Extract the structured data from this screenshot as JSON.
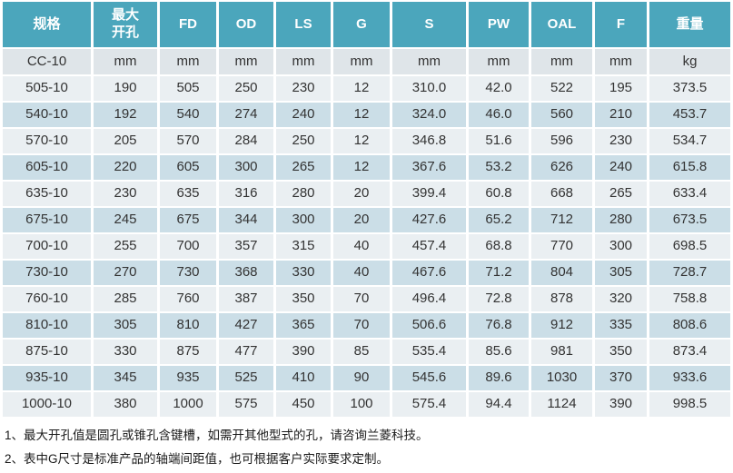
{
  "table": {
    "columns": [
      "规格",
      "最大\n开孔",
      "FD",
      "OD",
      "LS",
      "G",
      "S",
      "PW",
      "OAL",
      "F",
      "重量"
    ],
    "units_row": [
      "CC-10",
      "mm",
      "mm",
      "mm",
      "mm",
      "mm",
      "mm",
      "mm",
      "mm",
      "mm",
      "kg"
    ],
    "rows": [
      [
        "505-10",
        "190",
        "505",
        "250",
        "230",
        "12",
        "310.0",
        "42.0",
        "522",
        "195",
        "373.5"
      ],
      [
        "540-10",
        "192",
        "540",
        "274",
        "240",
        "12",
        "324.0",
        "46.0",
        "560",
        "210",
        "453.7"
      ],
      [
        "570-10",
        "205",
        "570",
        "284",
        "250",
        "12",
        "346.8",
        "51.6",
        "596",
        "230",
        "534.7"
      ],
      [
        "605-10",
        "220",
        "605",
        "300",
        "265",
        "12",
        "367.6",
        "53.2",
        "626",
        "240",
        "615.8"
      ],
      [
        "635-10",
        "230",
        "635",
        "316",
        "280",
        "20",
        "399.4",
        "60.8",
        "668",
        "265",
        "633.4"
      ],
      [
        "675-10",
        "245",
        "675",
        "344",
        "300",
        "20",
        "427.6",
        "65.2",
        "712",
        "280",
        "673.5"
      ],
      [
        "700-10",
        "255",
        "700",
        "357",
        "315",
        "40",
        "457.4",
        "68.8",
        "770",
        "300",
        "698.5"
      ],
      [
        "730-10",
        "270",
        "730",
        "368",
        "330",
        "40",
        "467.6",
        "71.2",
        "804",
        "305",
        "728.7"
      ],
      [
        "760-10",
        "285",
        "760",
        "387",
        "350",
        "70",
        "496.4",
        "72.8",
        "878",
        "320",
        "758.8"
      ],
      [
        "810-10",
        "305",
        "810",
        "427",
        "365",
        "70",
        "506.6",
        "76.8",
        "912",
        "335",
        "808.6"
      ],
      [
        "875-10",
        "330",
        "875",
        "477",
        "390",
        "85",
        "535.4",
        "85.6",
        "981",
        "350",
        "873.4"
      ],
      [
        "935-10",
        "345",
        "935",
        "525",
        "410",
        "90",
        "545.6",
        "89.6",
        "1030",
        "370",
        "933.6"
      ],
      [
        "1000-10",
        "380",
        "1000",
        "575",
        "450",
        "100",
        "575.4",
        "94.4",
        "1124",
        "390",
        "998.5"
      ]
    ]
  },
  "notes": [
    "1、最大开孔值是圆孔或锥孔含键槽，如需开其他型式的孔，请咨询兰菱科技。",
    "2、表中G尺寸是标准产品的轴端间距值，也可根据客户实际要求定制。"
  ],
  "colors": {
    "header_bg": "#4BA6BC",
    "header_text": "#FFFFFF",
    "units_row_bg": "#DFE5E9",
    "row_odd_bg": "#EAEFF2",
    "row_even_bg": "#CBDEE7",
    "data_text": "#333333"
  }
}
